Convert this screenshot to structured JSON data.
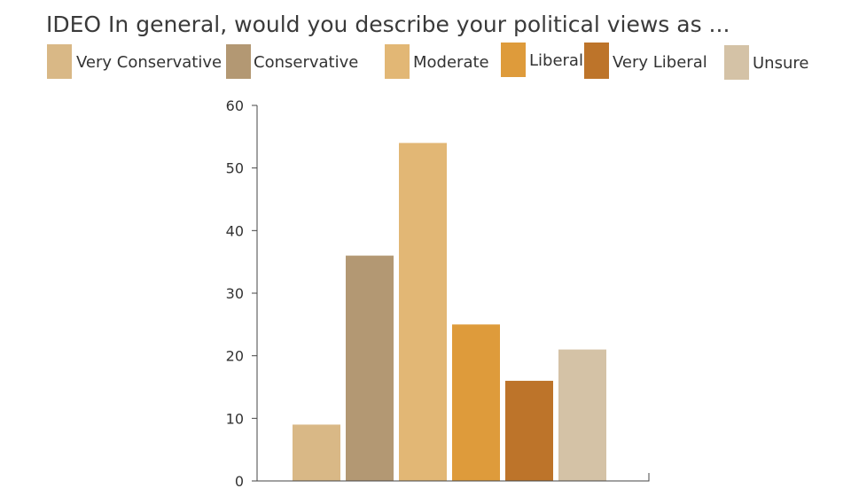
{
  "chart_data": {
    "type": "bar",
    "title": "IDEO In general, would you describe your political views as ...",
    "categories": [
      "Very Conservative",
      "Conservative",
      "Moderate",
      "Liberal",
      "Very Liberal",
      "Unsure"
    ],
    "values": [
      9,
      36,
      54,
      25,
      16,
      21
    ],
    "colors": [
      "#d9b886",
      "#b39873",
      "#e2b775",
      "#de9b3b",
      "#bd742a",
      "#d4c2a6"
    ],
    "ylim": [
      0,
      60
    ],
    "yticks": [
      "0",
      "10",
      "20",
      "30",
      "40",
      "50",
      "60"
    ],
    "xlabel": "",
    "ylabel": "",
    "legend": "top",
    "grid": false
  }
}
